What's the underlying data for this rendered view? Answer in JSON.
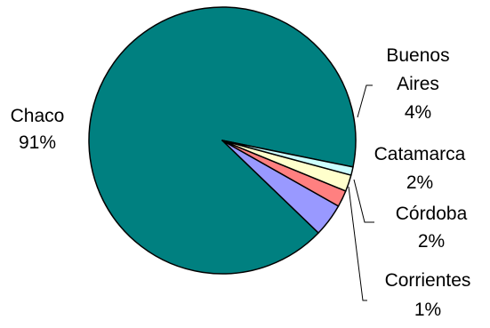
{
  "chart_data": {
    "type": "pie",
    "title": "",
    "series": [
      {
        "slices": [
          {
            "label": "Chaco",
            "value": 91,
            "value_label": "91%",
            "color": "#008080"
          },
          {
            "label": "Buenos Aires",
            "value": 4,
            "value_label": "4%",
            "color": "#9999ff"
          },
          {
            "label": "Catamarca",
            "value": 2,
            "value_label": "2%",
            "color": "#ff8080"
          },
          {
            "label": "Córdoba",
            "value": 2,
            "value_label": "2%",
            "color": "#ffffcc"
          },
          {
            "label": "Corrientes",
            "value": 1,
            "value_label": "1%",
            "color": "#ccffff"
          }
        ]
      }
    ],
    "legend": "none",
    "data_labels": "outside"
  }
}
